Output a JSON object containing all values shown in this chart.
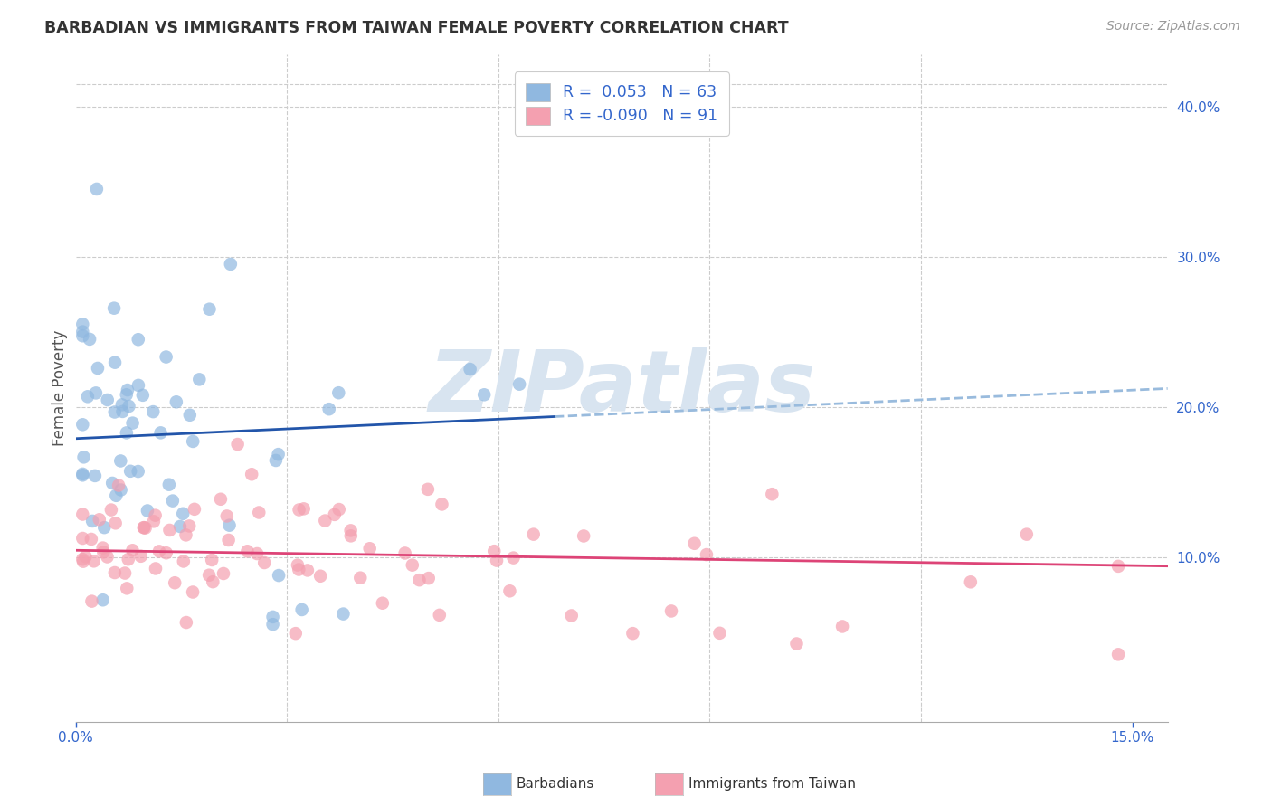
{
  "title": "BARBADIAN VS IMMIGRANTS FROM TAIWAN FEMALE POVERTY CORRELATION CHART",
  "source": "Source: ZipAtlas.com",
  "ylabel": "Female Poverty",
  "xlim": [
    0.0,
    0.155
  ],
  "ylim": [
    -0.01,
    0.435
  ],
  "R_blue": 0.053,
  "N_blue": 63,
  "R_pink": -0.09,
  "N_pink": 91,
  "blue_color": "#90B8E0",
  "pink_color": "#F4A0B0",
  "blue_line_color": "#2255AA",
  "pink_line_color": "#DD4477",
  "blue_dash_color": "#99BBDD",
  "watermark_color": "#D8E4F0",
  "legend_labels": [
    "Barbadians",
    "Immigrants from Taiwan"
  ],
  "legend_r_blue": "R =  0.053",
  "legend_n_blue": "N = 63",
  "legend_r_pink": "R = -0.090",
  "legend_n_pink": "N = 91"
}
